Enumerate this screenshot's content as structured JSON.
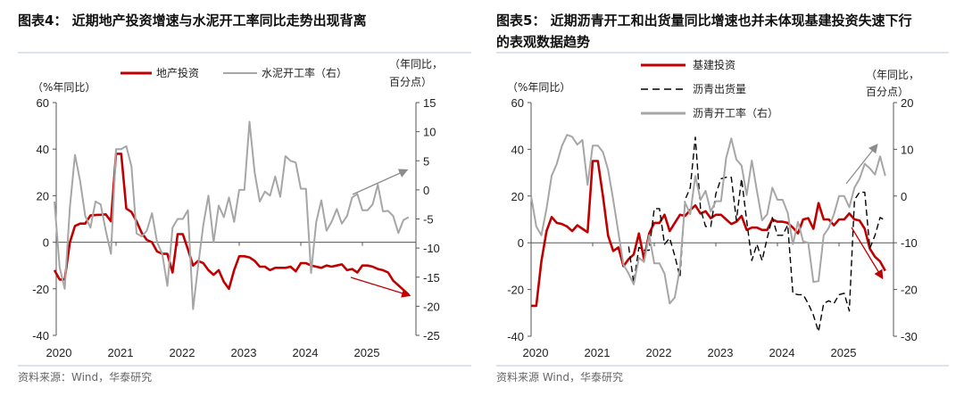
{
  "chart_data": [
    {
      "type": "line",
      "title": "图表4：  近期地产投资增速与水泥开工率同比走势出现背离",
      "left_axis_label": "（%年同比）",
      "right_axis_label_line1": "（年同比，",
      "right_axis_label_line2": "百分点）",
      "source": "资料来源：Wind，华泰研究",
      "ylim_left": [
        -40,
        60
      ],
      "yticks_left": [
        "60",
        "40",
        "20",
        "0",
        "-20",
        "-40"
      ],
      "ylim_right": [
        -25,
        15
      ],
      "yticks_right": [
        "15",
        "10",
        "5",
        "0",
        "-5",
        "-10",
        "-15",
        "-20",
        "-25"
      ],
      "xticks": [
        "2020",
        "2021",
        "2022",
        "2023",
        "2024",
        "2025"
      ],
      "grid": false,
      "legend_position": "top",
      "x": [
        "2020-01",
        "2020-02",
        "2020-03",
        "2020-04",
        "2020-05",
        "2020-06",
        "2020-07",
        "2020-08",
        "2020-09",
        "2020-10",
        "2020-11",
        "2020-12",
        "2021-01",
        "2021-02",
        "2021-03",
        "2021-04",
        "2021-05",
        "2021-06",
        "2021-07",
        "2021-08",
        "2021-09",
        "2021-10",
        "2021-11",
        "2021-12",
        "2022-01",
        "2022-02",
        "2022-03",
        "2022-04",
        "2022-05",
        "2022-06",
        "2022-07",
        "2022-08",
        "2022-09",
        "2022-10",
        "2022-11",
        "2022-12",
        "2023-01",
        "2023-02",
        "2023-03",
        "2023-04",
        "2023-05",
        "2023-06",
        "2023-07",
        "2023-08",
        "2023-09",
        "2023-10",
        "2023-11",
        "2023-12",
        "2024-01",
        "2024-02",
        "2024-03",
        "2024-04",
        "2024-05",
        "2024-06",
        "2024-07",
        "2024-08",
        "2024-09",
        "2024-10",
        "2024-11",
        "2024-12",
        "2025-01",
        "2025-02",
        "2025-03",
        "2025-04",
        "2025-05",
        "2025-06",
        "2025-07",
        "2025-08",
        "2025-09",
        "2025-10"
      ],
      "series": [
        {
          "name": "地产投资",
          "axis": "left",
          "color": "#c00000",
          "style": "solid",
          "values": [
            -12,
            -16,
            -16,
            0,
            7,
            8,
            8,
            11.5,
            11.7,
            11.8,
            12,
            9,
            38,
            38,
            14.5,
            13,
            9,
            4,
            1,
            0,
            -4,
            -5,
            -5,
            -13,
            3.5,
            3.5,
            -3,
            -10,
            -8,
            -9,
            -12,
            -14,
            -12,
            -17,
            -20,
            -12,
            -6,
            -6,
            -6.5,
            -8,
            -10.5,
            -10.5,
            -12,
            -11,
            -11,
            -11,
            -10.5,
            -12.5,
            -9,
            -9,
            -10,
            -10.5,
            -11,
            -10,
            -10.5,
            -10,
            -9.5,
            -12,
            -11.5,
            -13,
            -10,
            -10,
            -10.5,
            -11.5,
            -12,
            -13,
            -16.5,
            -18.5,
            -20.5,
            -22.5
          ]
        },
        {
          "name": "水泥开工率（右）",
          "axis": "right",
          "color": "#a6a6a6",
          "style": "solid",
          "values": [
            -2,
            -13.3,
            -17,
            -3,
            6,
            1.5,
            -4.5,
            -6.5,
            -2,
            -2.5,
            -7,
            -11,
            7,
            7,
            7.5,
            4,
            -7.5,
            -8,
            -7,
            -4,
            -9,
            -11,
            -16.5,
            -6.5,
            -5,
            -5,
            -3.5,
            -20.5,
            -13,
            -6,
            -1,
            -9,
            -2.7,
            -4.7,
            -1.3,
            -5.5,
            0,
            0,
            11.7,
            3,
            -2,
            -0.3,
            -1,
            2.3,
            -1.2,
            5.8,
            5,
            4.7,
            0.2,
            0.2,
            -14.3,
            -5.5,
            -1.8,
            -7,
            -5.5,
            -3.3,
            -5.8,
            -4.5,
            -1.3,
            -0.7,
            -3.5,
            -3.5,
            -2.5,
            0.9,
            -3.7,
            -3.6,
            -4.5,
            -7.4,
            -5.2,
            -4.7
          ]
        }
      ],
      "annotations": [
        {
          "type": "arrow",
          "color": "#8c8c8c",
          "direction": "up",
          "target_series": "水泥开工率（右）"
        },
        {
          "type": "arrow",
          "color": "#c00000",
          "direction": "down",
          "target_series": "地产投资"
        }
      ]
    },
    {
      "type": "line",
      "title_line1": "图表5：  近期沥青开工和出货量同比增速也并未体现基建投资失速下行",
      "title_line2": "的表观数据趋势",
      "left_axis_label": "（%年同比）",
      "right_axis_label_line1": "（年同比，",
      "right_axis_label_line2": "百分点）",
      "source": "资料来源 Wind，华泰研究",
      "ylim_left": [
        -40,
        60
      ],
      "yticks_left": [
        "60",
        "40",
        "20",
        "0",
        "-20",
        "-40"
      ],
      "ylim_right": [
        -30,
        20
      ],
      "yticks_right": [
        "20",
        "10",
        "0",
        "-10",
        "-20",
        "-30"
      ],
      "xticks": [
        "2020",
        "2021",
        "2022",
        "2023",
        "2024",
        "2025"
      ],
      "grid": false,
      "legend_position": "top",
      "x": [
        "2020-01",
        "2020-02",
        "2020-03",
        "2020-04",
        "2020-05",
        "2020-06",
        "2020-07",
        "2020-08",
        "2020-09",
        "2020-10",
        "2020-11",
        "2020-12",
        "2021-01",
        "2021-02",
        "2021-03",
        "2021-04",
        "2021-05",
        "2021-06",
        "2021-07",
        "2021-08",
        "2021-09",
        "2021-10",
        "2021-11",
        "2021-12",
        "2022-01",
        "2022-02",
        "2022-03",
        "2022-04",
        "2022-05",
        "2022-06",
        "2022-07",
        "2022-08",
        "2022-09",
        "2022-10",
        "2022-11",
        "2022-12",
        "2023-01",
        "2023-02",
        "2023-03",
        "2023-04",
        "2023-05",
        "2023-06",
        "2023-07",
        "2023-08",
        "2023-09",
        "2023-10",
        "2023-11",
        "2023-12",
        "2024-01",
        "2024-02",
        "2024-03",
        "2024-04",
        "2024-05",
        "2024-06",
        "2024-07",
        "2024-08",
        "2024-09",
        "2024-10",
        "2024-11",
        "2024-12",
        "2025-01",
        "2025-02",
        "2025-03",
        "2025-04",
        "2025-05",
        "2025-06",
        "2025-07",
        "2025-08",
        "2025-09",
        "2025-10"
      ],
      "series": [
        {
          "name": "基建投资",
          "axis": "left",
          "color": "#c00000",
          "style": "solid",
          "values": [
            -27,
            -27,
            -8,
            5,
            11,
            8.5,
            8,
            7,
            5,
            7.5,
            6,
            4.5,
            35,
            35,
            20,
            3,
            -3.5,
            -2,
            -10,
            -7,
            -5,
            4,
            -7,
            4,
            8.5,
            8.5,
            12,
            5,
            8.5,
            12,
            11.5,
            14,
            16,
            12.5,
            13.5,
            10.5,
            12,
            12,
            10,
            8,
            9,
            11.5,
            5.5,
            6.5,
            6.5,
            5.5,
            5.5,
            10,
            9,
            9,
            8.5,
            6.5,
            4,
            10,
            10.5,
            6,
            17,
            10,
            10,
            7.5,
            10,
            10,
            12.5,
            10,
            9.5,
            6,
            -2.5,
            -6,
            -8,
            -12
          ]
        },
        {
          "name": "沥青出货量",
          "axis": "right",
          "color": "#000000",
          "style": "dashed",
          "values": [
            null,
            null,
            null,
            null,
            null,
            null,
            null,
            null,
            null,
            null,
            null,
            null,
            null,
            null,
            null,
            null,
            null,
            null,
            null,
            -10.8,
            -18.6,
            -11,
            -11.6,
            -11.6,
            -2.7,
            -2.7,
            -10.3,
            -9,
            -12.8,
            -17.3,
            -0.8,
            1.8,
            12.6,
            -2.7,
            -6.5,
            -6.5,
            0.5,
            3.7,
            4,
            4,
            -5.2,
            3.7,
            -5.2,
            -13.8,
            -10.3,
            -13.8,
            -9,
            -4.6,
            -8.4,
            -8.4,
            -6.2,
            -20.8,
            -21.1,
            -21.1,
            -23,
            -25.5,
            -29,
            -23,
            -22.4,
            -23,
            -21.1,
            -20.8,
            -24.6,
            -0.8,
            0.8,
            0.8,
            -11.2,
            -8.4,
            -4.6,
            -5.2
          ]
        },
        {
          "name": "沥青开工率（右）",
          "axis": "right",
          "color": "#a6a6a6",
          "style": "solid",
          "values": [
            0,
            -6.5,
            -8.4,
            -2.7,
            4.3,
            6.9,
            10.7,
            13.1,
            12.7,
            11,
            12,
            2.4,
            10.8,
            10.8,
            9.4,
            5.6,
            -0.8,
            -7.8,
            -14.7,
            -16.6,
            -18.9,
            -13.2,
            -14.1,
            -8.4,
            -14.4,
            -14.4,
            -16.6,
            -23,
            -21.7,
            -15.4,
            -1.4,
            -3.9,
            4.3,
            -0.8,
            1.1,
            -3.3,
            -1.1,
            -1.1,
            8.1,
            12.3,
            7.8,
            6.5,
            0.2,
            7.6,
            1.1,
            -5.2,
            -3.9,
            1.8,
            -0.8,
            -0.8,
            -3.6,
            -10.3,
            -5.5,
            -9.7,
            -10,
            -18.4,
            -18.2,
            -8.4,
            -6.8,
            -3.9,
            0,
            0,
            -2.4,
            1.8,
            3.7,
            6.9,
            5.9,
            4.6,
            8.5,
            4.3
          ]
        }
      ],
      "annotations": [
        {
          "type": "arrow",
          "color": "#8c8c8c",
          "direction": "up",
          "target_series": "沥青开工率（右）"
        },
        {
          "type": "arrow",
          "color": "#c00000",
          "direction": "down",
          "target_series": "基建投资"
        }
      ]
    }
  ]
}
